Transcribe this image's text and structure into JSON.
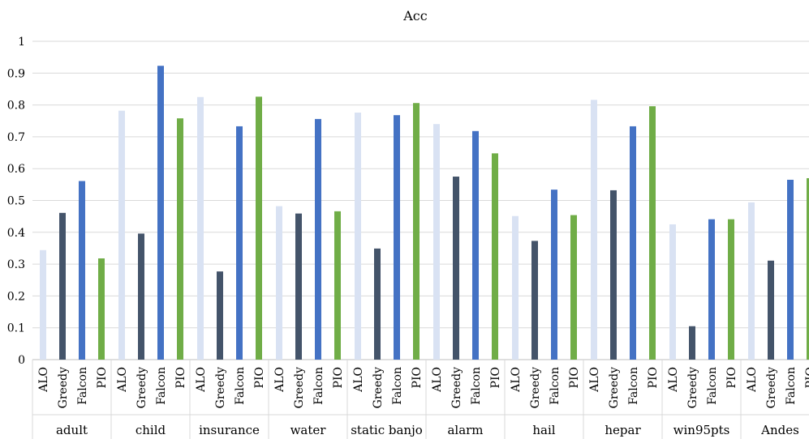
{
  "chart_data": {
    "type": "bar",
    "title": "Acc",
    "xlabel": "",
    "ylabel": "",
    "ylim": [
      0,
      1
    ],
    "yticks": [
      "0",
      "0.1",
      "0.2",
      "0.3",
      "0.4",
      "0.5",
      "0.6",
      "0.7",
      "0.8",
      "0.9",
      "1"
    ],
    "grid": true,
    "series": [
      {
        "name": "ALO",
        "color": "#d9e2f3"
      },
      {
        "name": "Greedy",
        "color": "#44546a"
      },
      {
        "name": "Falcon",
        "color": "#4472c4"
      },
      {
        "name": "PIO",
        "color": "#70ad47"
      }
    ],
    "groups": [
      {
        "name": "adult",
        "values": [
          0.344,
          0.461,
          0.561,
          0.318
        ]
      },
      {
        "name": "child",
        "values": [
          0.782,
          0.396,
          0.923,
          0.758
        ]
      },
      {
        "name": "insurance",
        "values": [
          0.825,
          0.277,
          0.733,
          0.826
        ]
      },
      {
        "name": "water",
        "values": [
          0.482,
          0.459,
          0.756,
          0.466
        ]
      },
      {
        "name": "static banjo",
        "values": [
          0.776,
          0.349,
          0.768,
          0.806
        ]
      },
      {
        "name": "alarm",
        "values": [
          0.74,
          0.575,
          0.718,
          0.648
        ]
      },
      {
        "name": "hail",
        "values": [
          0.451,
          0.373,
          0.534,
          0.454
        ]
      },
      {
        "name": "hepar",
        "values": [
          0.816,
          0.532,
          0.733,
          0.796
        ]
      },
      {
        "name": "win95pts",
        "values": [
          0.425,
          0.105,
          0.441,
          0.441
        ]
      },
      {
        "name": "Andes",
        "values": [
          0.494,
          0.311,
          0.565,
          0.57
        ]
      }
    ]
  }
}
